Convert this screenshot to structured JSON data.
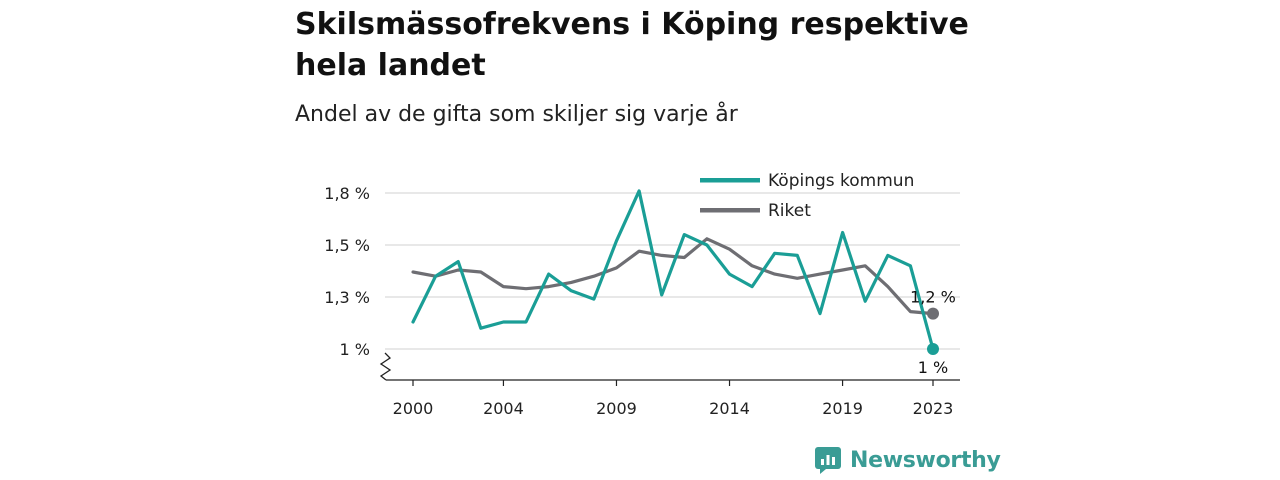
{
  "chart_data": {
    "type": "line",
    "title": "Skilsmässofrekvens i Köping respektive hela landet",
    "subtitle": "Andel av de gifta som skiljer sig varje år",
    "x": [
      2000,
      2001,
      2002,
      2003,
      2004,
      2005,
      2006,
      2007,
      2008,
      2009,
      2010,
      2011,
      2012,
      2013,
      2014,
      2015,
      2016,
      2017,
      2018,
      2019,
      2020,
      2021,
      2022,
      2023
    ],
    "x_tick_labels": [
      "2000",
      "2004",
      "2009",
      "2014",
      "2019",
      "2023"
    ],
    "x_ticks": [
      2000,
      2004,
      2009,
      2014,
      2019,
      2023
    ],
    "y_tick_labels": [
      "1 %",
      "1,3 %",
      "1,5 %",
      "1,8 %"
    ],
    "y_ticks": [
      1.0,
      1.25,
      1.5,
      1.75
    ],
    "ylim": [
      0.85,
      1.85
    ],
    "xlim": [
      2000,
      2023
    ],
    "grid": "horizontal",
    "legend": "top-right",
    "series": [
      {
        "name": "Köpings kommun",
        "color": "#1a9e96",
        "values": [
          1.13,
          1.35,
          1.42,
          1.1,
          1.13,
          1.13,
          1.36,
          1.28,
          1.24,
          1.52,
          1.76,
          1.26,
          1.55,
          1.5,
          1.36,
          1.3,
          1.46,
          1.45,
          1.17,
          1.56,
          1.23,
          1.45,
          1.4,
          1.0
        ],
        "end_label": "1 %"
      },
      {
        "name": "Riket",
        "color": "#6e6e73",
        "values": [
          1.37,
          1.35,
          1.38,
          1.37,
          1.3,
          1.29,
          1.3,
          1.32,
          1.35,
          1.39,
          1.47,
          1.45,
          1.44,
          1.53,
          1.48,
          1.4,
          1.36,
          1.34,
          1.36,
          1.38,
          1.4,
          1.3,
          1.18,
          1.17
        ],
        "end_label": "1,2 %"
      }
    ]
  },
  "brand": {
    "name": "Newsworthy",
    "logo_icon": "newsworthy-logo-icon",
    "color": "#3a9c95"
  }
}
